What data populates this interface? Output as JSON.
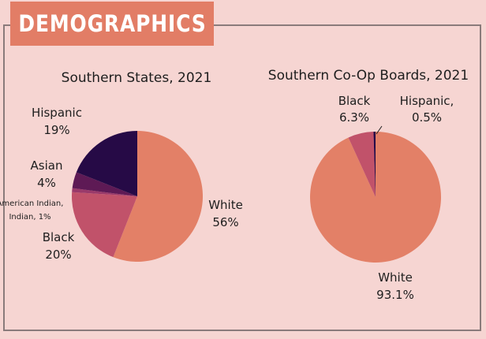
{
  "header": {
    "title": "DEMOGRAPHICS"
  },
  "colors": {
    "background": "#f6d5d2",
    "banner": "#e27d66",
    "frame": "#8a7b7b",
    "white": "#e38067",
    "black": "#c1526a",
    "american_indian": "#9a3a6a",
    "asian": "#5e1a55",
    "hispanic": "#260a46"
  },
  "chart_data": [
    {
      "type": "pie",
      "title": "Southern States, 2021",
      "slices": [
        {
          "key": "white",
          "label": "White",
          "value": 56,
          "value_label": "56%"
        },
        {
          "key": "black",
          "label": "Black",
          "value": 20,
          "value_label": "20%"
        },
        {
          "key": "american_indian",
          "label": "American Indian,",
          "value": 1,
          "value_label": "1%"
        },
        {
          "key": "asian",
          "label": "Asian",
          "value": 4,
          "value_label": "4%"
        },
        {
          "key": "hispanic",
          "label": "Hispanic",
          "value": 19,
          "value_label": "19%"
        }
      ]
    },
    {
      "type": "pie",
      "title": "Southern Co-Op Boards, 2021",
      "slices": [
        {
          "key": "white",
          "label": "White",
          "value": 93.1,
          "value_label": "93.1%"
        },
        {
          "key": "black",
          "label": "Black",
          "value": 6.3,
          "value_label": "6.3%"
        },
        {
          "key": "hispanic",
          "label": "Hispanic,",
          "value": 0.5,
          "value_label": "0.5%"
        }
      ]
    }
  ]
}
